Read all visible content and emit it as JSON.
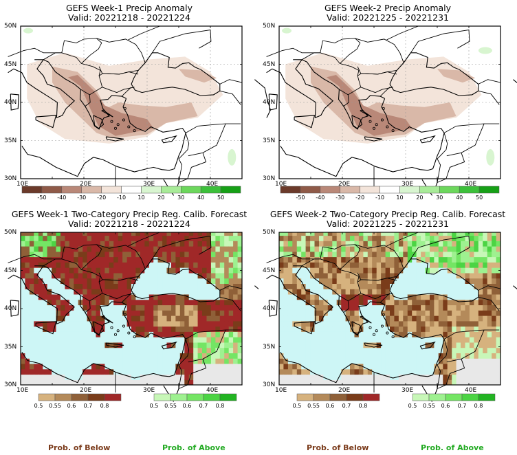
{
  "panels": [
    {
      "kind": "anomaly",
      "title": "GEFS Week-1 Precip Anomaly",
      "valid": "Valid: 20221218 - 20221224",
      "lat_ticks": [
        "50N",
        "45N",
        "40N",
        "35N",
        "30N"
      ],
      "lon_ticks": [
        "10E",
        "20E",
        "30E",
        "40E"
      ],
      "colorbar_ticks": [
        "-50",
        "-40",
        "-30",
        "-20",
        "-10",
        "10",
        "20",
        "30",
        "40",
        "50"
      ]
    },
    {
      "kind": "anomaly",
      "title": "GEFS Week-2 Precip Anomaly",
      "valid": "Valid: 20221225 - 20221231",
      "lat_ticks": [
        "50N",
        "45N",
        "40N",
        "35N",
        "30N"
      ],
      "lon_ticks": [
        "10E",
        "20E",
        "30E",
        "40E"
      ],
      "colorbar_ticks": [
        "-50",
        "-40",
        "-30",
        "-20",
        "-10",
        "10",
        "20",
        "30",
        "40",
        "50"
      ]
    },
    {
      "kind": "prob",
      "title": "GEFS Week-1 Two-Category Precip Reg. Calib. Forecast",
      "valid": "Valid: 20221218 - 20221224",
      "lat_ticks": [
        "50N",
        "45N",
        "40N",
        "35N",
        "30N"
      ],
      "lon_ticks": [
        "10E",
        "20E",
        "30E",
        "40E"
      ],
      "below_ticks": [
        "0.5",
        "0.55",
        "0.6",
        "0.7",
        "0.8"
      ],
      "above_ticks": [
        "0.5",
        "0.55",
        "0.6",
        "0.7",
        "0.8"
      ]
    },
    {
      "kind": "prob",
      "title": "GEFS Week-2 Two-Category Precip Reg. Calib. Forecast",
      "valid": "Valid: 20221225 - 20221231",
      "lat_ticks": [
        "50N",
        "45N",
        "40N",
        "35N",
        "30N"
      ],
      "lon_ticks": [
        "10E",
        "20E",
        "30E",
        "40E"
      ],
      "below_ticks": [
        "0.5",
        "0.55",
        "0.6",
        "0.7",
        "0.8"
      ],
      "above_ticks": [
        "0.5",
        "0.55",
        "0.6",
        "0.7",
        "0.8"
      ]
    }
  ],
  "footer": {
    "below_label": "Prob. of Below",
    "above_label": "Prob. of Above"
  },
  "colors": {
    "anomaly_scale": [
      "#6b3a2a",
      "#8f5a48",
      "#b98878",
      "#d9b8a8",
      "#f3e4da",
      "#ffffff",
      "#d8f5d0",
      "#a8eb98",
      "#6cd75c",
      "#3cc03a",
      "#16a016"
    ],
    "below_scale": [
      "#d6b27e",
      "#b48a5a",
      "#8f6038",
      "#7a3c1a",
      "#a02828"
    ],
    "above_scale": [
      "#c8f7b8",
      "#9ef190",
      "#74e564",
      "#4cd444",
      "#22b422"
    ],
    "sea_prob": "#cdf6f6",
    "no_data": "#e8e8e8",
    "below_text": "#7a3a1a",
    "above_text": "#22aa22"
  }
}
